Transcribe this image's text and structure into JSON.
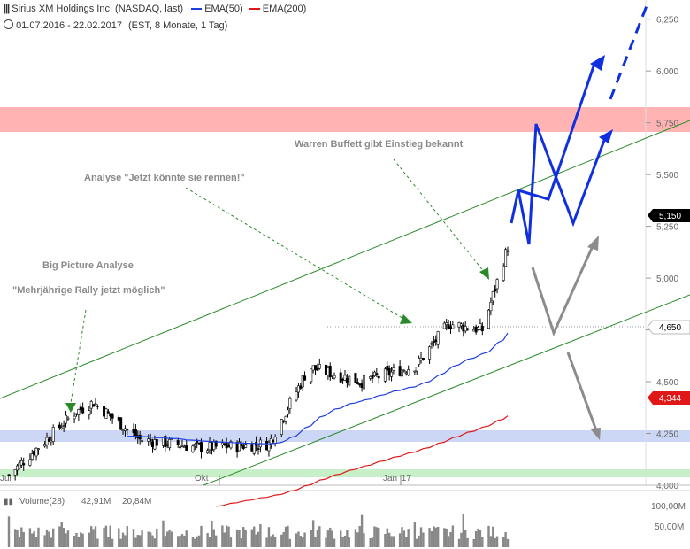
{
  "header": {
    "title": "Sirius XM Holdings Inc. (NASDAQ, last)",
    "ema50_label": "EMA(50)",
    "ema200_label": "EMA(200)",
    "range": "01.07.2016 - 22.02.2017",
    "params": "(EST, 8 Monate, 1 Tag)"
  },
  "colors": {
    "ema50": "#1f3fe0",
    "ema200": "#e01818",
    "channel": "#2a8a2a",
    "projection": "#1030e0",
    "alt_projection": "#8c8c8c",
    "resistance_zone": "#ffb3b3",
    "support_zone": "#ccd6f5",
    "base_zone": "#c8f0c8"
  },
  "chart_data": {
    "type": "candlestick",
    "ylim": [
      4.0,
      6.3
    ],
    "y_ticks": [
      "6,250",
      "6,000",
      "5,750",
      "5,500",
      "5,250",
      "5,000",
      "4,750",
      "4,500",
      "4,250",
      "4,000"
    ],
    "x_labels": [
      "Jul",
      "Okt",
      "Jan '17"
    ],
    "price_tags": {
      "last": "5,150",
      "dotted_level": "4,650",
      "ema200": "4,344"
    },
    "price_approx": [
      {
        "date": "2016-07-01",
        "value": 4.05
      },
      {
        "date": "2016-08-01",
        "value": 4.35
      },
      {
        "date": "2016-08-10",
        "value": 4.4
      },
      {
        "date": "2016-09-01",
        "value": 4.22
      },
      {
        "date": "2016-10-01",
        "value": 4.18
      },
      {
        "date": "2016-11-01",
        "value": 4.2
      },
      {
        "date": "2016-11-20",
        "value": 4.57
      },
      {
        "date": "2016-12-15",
        "value": 4.5
      },
      {
        "date": "2017-01-10",
        "value": 4.58
      },
      {
        "date": "2017-01-25",
        "value": 4.78
      },
      {
        "date": "2017-02-10",
        "value": 4.75
      },
      {
        "date": "2017-02-22",
        "value": 5.15
      }
    ],
    "annotations": [
      {
        "text": "Warren Buffett gibt Einstieg bekannt"
      },
      {
        "text": "Analyse \"Jetzt könnte sie rennen!\""
      },
      {
        "text": "Big Picture Analyse"
      },
      {
        "text": "\"Mehrjährige Rally jetzt möglich\""
      }
    ],
    "volume": {
      "label": "Volume(28)",
      "value1": "42,91M",
      "value2": "20,84M",
      "ticks": [
        "100,00M",
        "50,00M"
      ]
    }
  }
}
